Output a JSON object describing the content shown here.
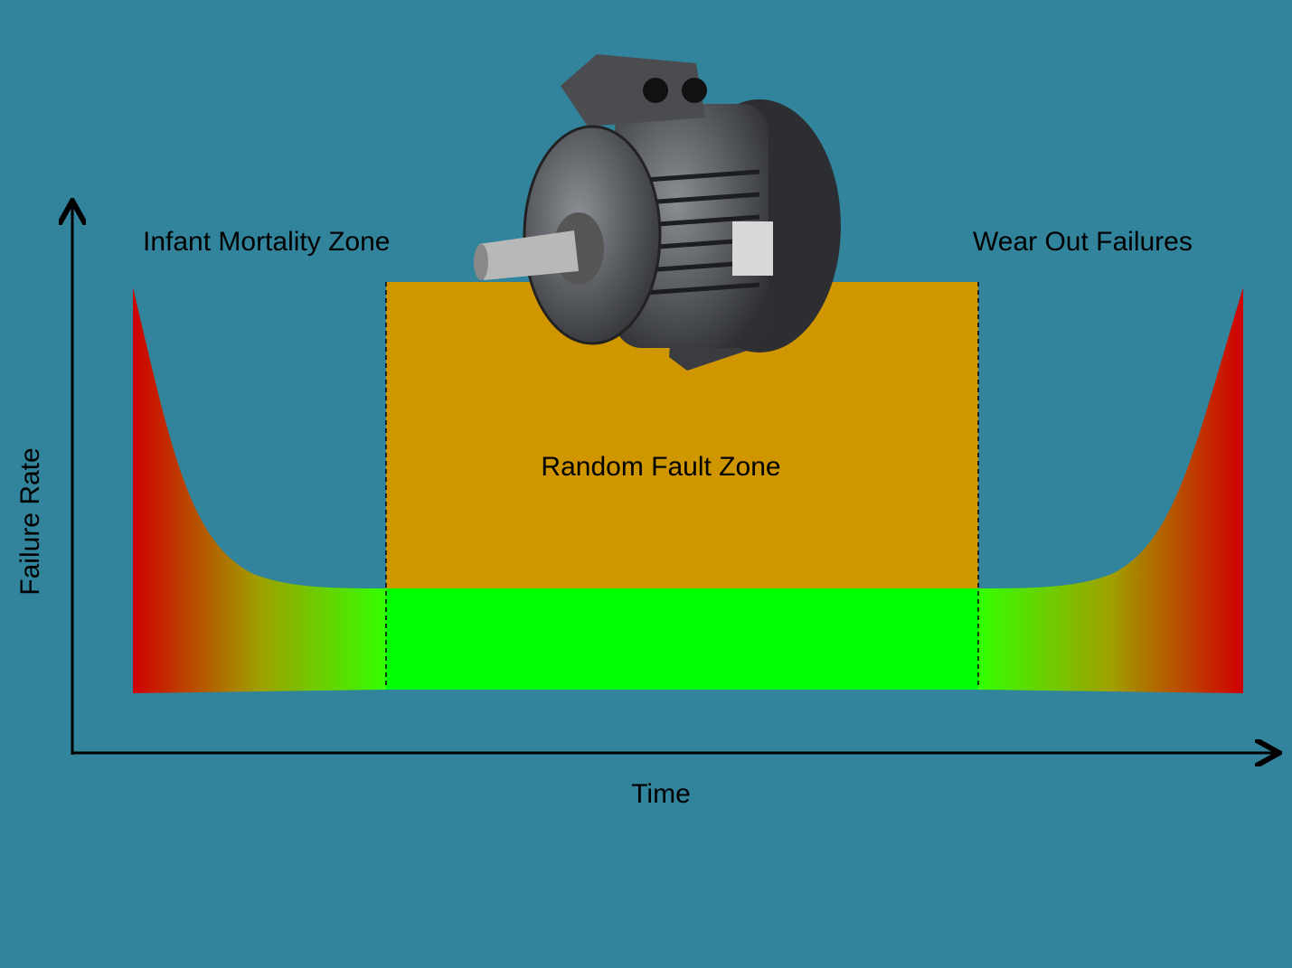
{
  "zones": [
    {
      "label": "Infant Mortality Zone"
    },
    {
      "label": "Random Fault Zone"
    },
    {
      "label": "Wear Out Failures"
    }
  ],
  "axes": {
    "y_label": "Failure Rate",
    "x_label": "Time"
  }
}
